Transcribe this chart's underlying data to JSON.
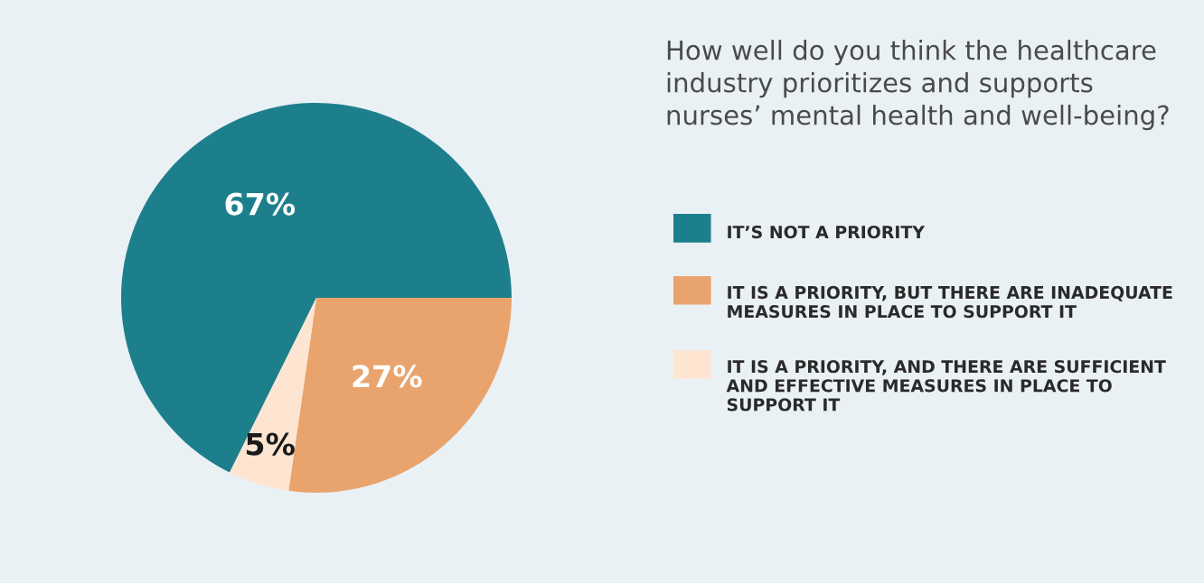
{
  "chart_data": {
    "type": "pie",
    "title": "How well do you think the healthcare\nindustry prioritizes and supports\nnurses’ mental health and well-being?",
    "categories": [
      "IT’S NOT A PRIORITY",
      "IT IS A PRIORITY, BUT THERE ARE INADEQUATE\nMEASURES IN PLACE TO SUPPORT IT",
      "IT IS A PRIORITY, AND THERE ARE SUFFICIENT\nAND EFFECTIVE MEASURES IN PLACE TO\nSUPPORT IT"
    ],
    "values": [
      67,
      27,
      5
    ],
    "colors": [
      "#1e7f8c",
      "#e8a46c",
      "#fde5d2"
    ],
    "value_labels": [
      "67%",
      "27%",
      "5%"
    ],
    "legend": "right"
  }
}
